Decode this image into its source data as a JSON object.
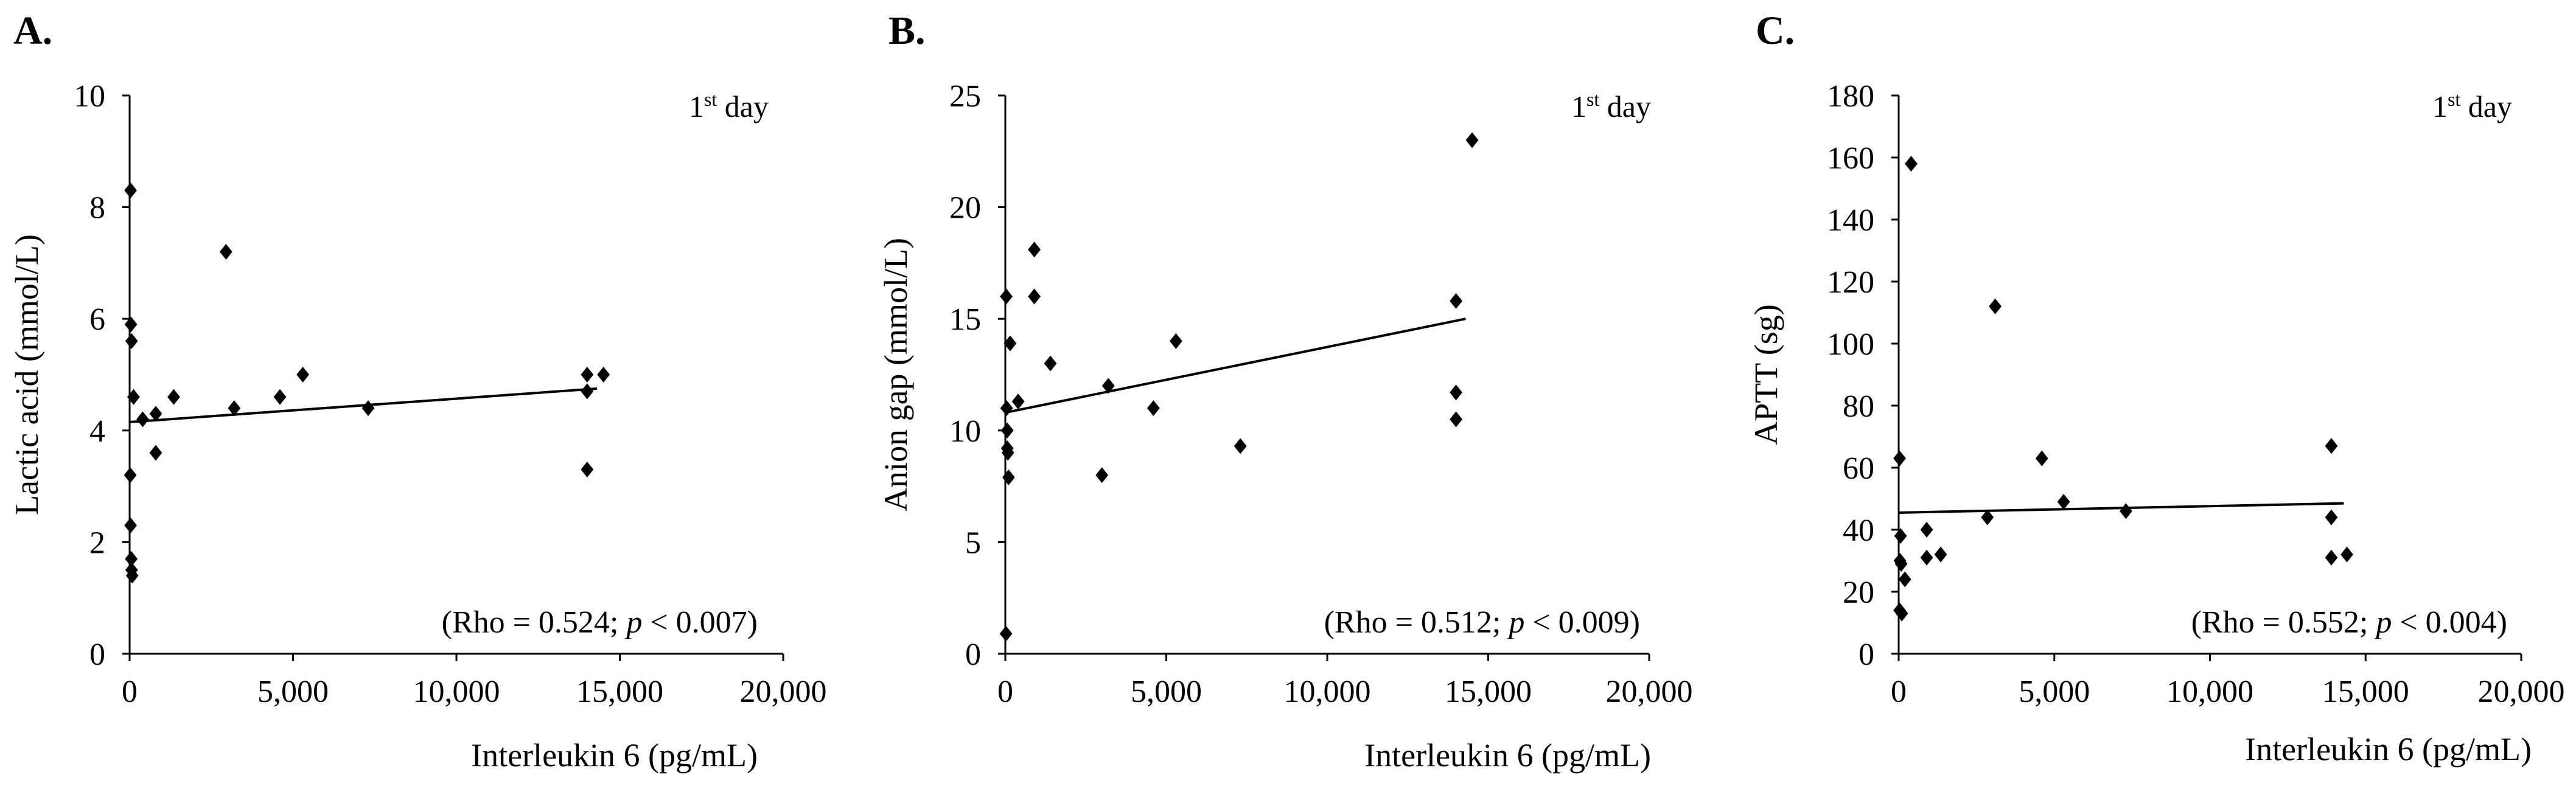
{
  "chart_data": [
    {
      "panel": "A.",
      "type": "scatter",
      "xlabel": "Interleukin 6 (pg/mL)",
      "ylabel": "Lactic acid (mmol/L)",
      "xlim": [
        0,
        20000
      ],
      "ylim": [
        0,
        10
      ],
      "xticks": [
        0,
        5000,
        10000,
        15000,
        20000
      ],
      "xtick_labels": [
        "0",
        "5,000",
        "10,000",
        "15,000",
        "20,000"
      ],
      "yticks": [
        0,
        2,
        4,
        6,
        8,
        10
      ],
      "ytick_labels": [
        "0",
        "2",
        "4",
        "6",
        "8",
        "10"
      ],
      "annotation": {
        "base": "1",
        "sup": "st",
        "rest": " day"
      },
      "stat": {
        "prefix": "(Rho = 0.524; ",
        "p": "p",
        "suffix": " < 0.007)"
      },
      "trendline": {
        "x": [
          0,
          14300
        ],
        "y": [
          4.15,
          4.75
        ]
      },
      "points": [
        {
          "x": 30,
          "y": 8.3
        },
        {
          "x": 40,
          "y": 5.9
        },
        {
          "x": 60,
          "y": 5.6
        },
        {
          "x": 120,
          "y": 4.6
        },
        {
          "x": 20,
          "y": 3.2
        },
        {
          "x": 30,
          "y": 2.3
        },
        {
          "x": 50,
          "y": 1.7
        },
        {
          "x": 60,
          "y": 1.5
        },
        {
          "x": 80,
          "y": 1.4
        },
        {
          "x": 400,
          "y": 4.2
        },
        {
          "x": 800,
          "y": 4.3
        },
        {
          "x": 800,
          "y": 3.6
        },
        {
          "x": 1350,
          "y": 4.6
        },
        {
          "x": 2950,
          "y": 7.2
        },
        {
          "x": 3200,
          "y": 4.4
        },
        {
          "x": 4600,
          "y": 4.6
        },
        {
          "x": 5300,
          "y": 5.0
        },
        {
          "x": 7300,
          "y": 4.4
        },
        {
          "x": 14000,
          "y": 5.0
        },
        {
          "x": 14000,
          "y": 4.7
        },
        {
          "x": 14000,
          "y": 3.3
        },
        {
          "x": 14500,
          "y": 5.0
        }
      ]
    },
    {
      "panel": "B.",
      "type": "scatter",
      "xlabel": "Interleukin 6 (pg/mL)",
      "ylabel": "Anion gap (mmol/L)",
      "xlim": [
        0,
        20000
      ],
      "ylim": [
        0,
        25
      ],
      "xticks": [
        0,
        5000,
        10000,
        15000,
        20000
      ],
      "xtick_labels": [
        "0",
        "5,000",
        "10,000",
        "15,000",
        "20,000"
      ],
      "yticks": [
        0,
        5,
        10,
        15,
        20,
        25
      ],
      "ytick_labels": [
        "0",
        "5",
        "10",
        "15",
        "20",
        "25"
      ],
      "annotation": {
        "base": "1",
        "sup": "st",
        "rest": " day"
      },
      "stat": {
        "prefix": "(Rho = 0.512; ",
        "p": "p",
        "suffix": " < 0.009)"
      },
      "trendline": {
        "x": [
          0,
          14300
        ],
        "y": [
          10.8,
          15.0
        ]
      },
      "points": [
        {
          "x": 30,
          "y": 16.0
        },
        {
          "x": 150,
          "y": 13.9
        },
        {
          "x": 40,
          "y": 11.0
        },
        {
          "x": 400,
          "y": 11.3
        },
        {
          "x": 60,
          "y": 10.0
        },
        {
          "x": 60,
          "y": 9.2
        },
        {
          "x": 80,
          "y": 9.0
        },
        {
          "x": 100,
          "y": 7.9
        },
        {
          "x": 20,
          "y": 0.9
        },
        {
          "x": 900,
          "y": 18.1
        },
        {
          "x": 900,
          "y": 16.0
        },
        {
          "x": 1400,
          "y": 13.0
        },
        {
          "x": 3000,
          "y": 8.0
        },
        {
          "x": 3200,
          "y": 12.0
        },
        {
          "x": 4600,
          "y": 11.0
        },
        {
          "x": 5300,
          "y": 14.0
        },
        {
          "x": 7300,
          "y": 9.3
        },
        {
          "x": 14000,
          "y": 15.8
        },
        {
          "x": 14000,
          "y": 11.7
        },
        {
          "x": 14000,
          "y": 10.5
        },
        {
          "x": 14500,
          "y": 23.0
        }
      ]
    },
    {
      "panel": "C.",
      "type": "scatter",
      "xlabel": "Interleukin 6 (pg/mL)",
      "ylabel": "APTT (sg)",
      "xlim": [
        0,
        20000
      ],
      "ylim": [
        0,
        180
      ],
      "xticks": [
        0,
        5000,
        10000,
        15000,
        20000
      ],
      "xtick_labels": [
        "0",
        "5,000",
        "10,000",
        "15,000",
        "20,000"
      ],
      "yticks": [
        0,
        20,
        40,
        60,
        80,
        100,
        120,
        140,
        160,
        180
      ],
      "ytick_labels": [
        "0",
        "20",
        "40",
        "60",
        "80",
        "100",
        "120",
        "140",
        "160",
        "180"
      ],
      "annotation": {
        "base": "1",
        "sup": "st",
        "rest": " day"
      },
      "stat": {
        "prefix": "(Rho = 0.552; ",
        "p": "p",
        "suffix": " < 0.004)"
      },
      "trendline": {
        "x": [
          0,
          14300
        ],
        "y": [
          45.5,
          48.5
        ]
      },
      "points": [
        {
          "x": 400,
          "y": 158
        },
        {
          "x": 30,
          "y": 63
        },
        {
          "x": 60,
          "y": 38
        },
        {
          "x": 40,
          "y": 30
        },
        {
          "x": 80,
          "y": 29
        },
        {
          "x": 200,
          "y": 24
        },
        {
          "x": 30,
          "y": 14
        },
        {
          "x": 100,
          "y": 13
        },
        {
          "x": 900,
          "y": 40
        },
        {
          "x": 900,
          "y": 31
        },
        {
          "x": 1350,
          "y": 32
        },
        {
          "x": 2850,
          "y": 44
        },
        {
          "x": 3100,
          "y": 112
        },
        {
          "x": 4600,
          "y": 63
        },
        {
          "x": 5300,
          "y": 49
        },
        {
          "x": 7300,
          "y": 46
        },
        {
          "x": 13900,
          "y": 67
        },
        {
          "x": 13900,
          "y": 44
        },
        {
          "x": 13900,
          "y": 31
        },
        {
          "x": 14400,
          "y": 32
        }
      ]
    }
  ]
}
